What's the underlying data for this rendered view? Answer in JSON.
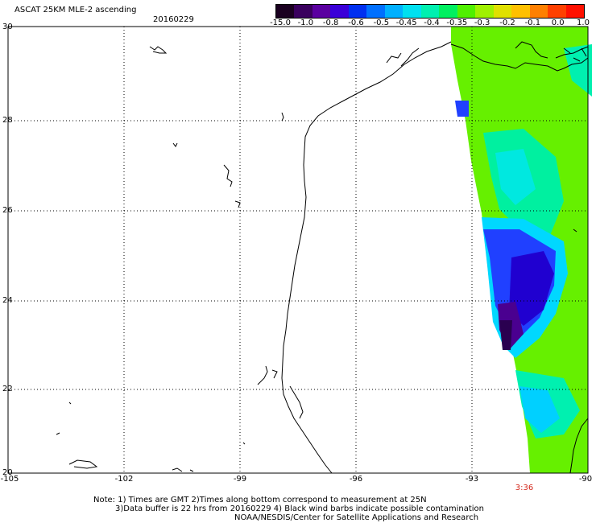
{
  "title": "ASCAT 25KM MLE-2 ascending",
  "date": "20160229",
  "lat_labels": [
    "30",
    "28",
    "26",
    "24",
    "22",
    "20"
  ],
  "lon_labels": [
    "-105",
    "-102",
    "-99",
    "-96",
    "-93",
    "-90"
  ],
  "colorbar": {
    "labels": [
      "-15.0",
      "-1.0",
      "-0.8",
      "-0.6",
      "-0.5",
      "-0.45",
      "-0.4",
      "-0.35",
      "-0.3",
      "-0.2",
      "-0.1",
      "0.0",
      "1.0"
    ],
    "colors": [
      "#1a0020",
      "#3a005e",
      "#5a00a0",
      "#3a00d8",
      "#0030f0",
      "#0070ff",
      "#00b0ff",
      "#00e0f0",
      "#00f0b0",
      "#00f060",
      "#50f000",
      "#a0f000",
      "#e0e000",
      "#ffc000",
      "#ff8000",
      "#ff4000",
      "#ff1000"
    ]
  },
  "time_label": "3:36",
  "notes": {
    "line1": "Note: 1) Times are GMT 2)Times along bottom correspond to measurement at 25N",
    "line2": "3)Data buffer is 22 hrs from 20160229 4) Black wind barbs indicate possible contamination",
    "line3": "NOAA/NESDIS/Center for Satellite Applications and Research"
  }
}
